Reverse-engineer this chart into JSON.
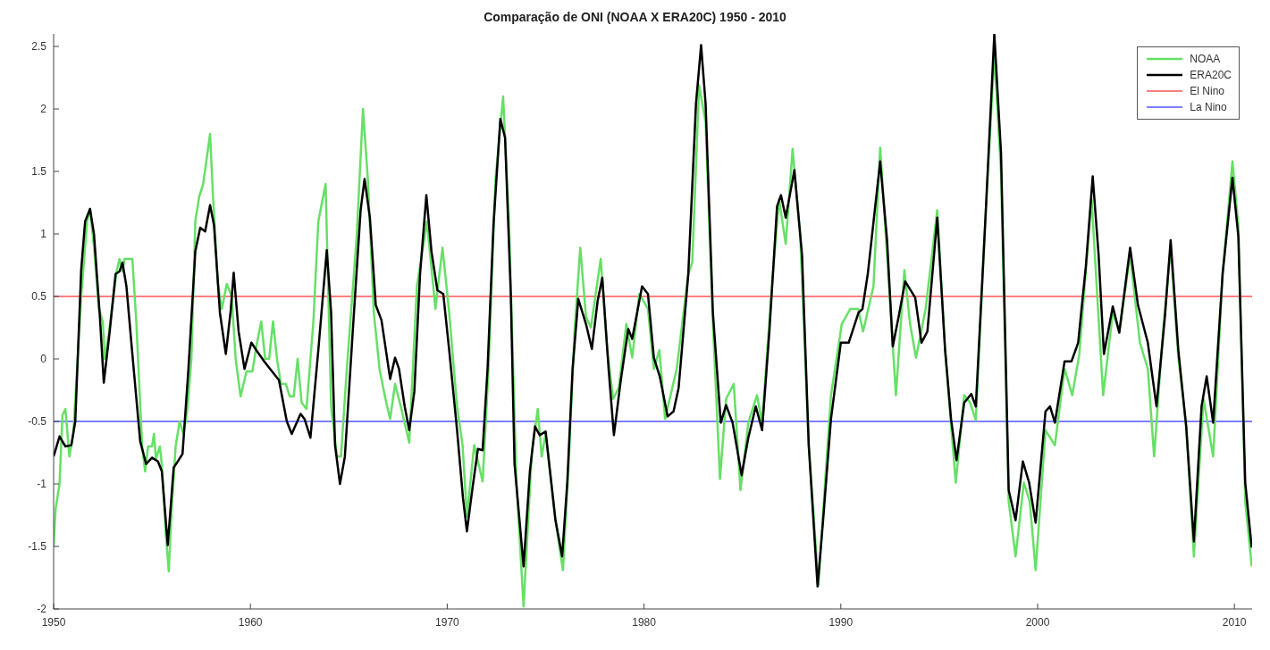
{
  "chart_data": {
    "type": "line",
    "title": "Comparação de ONI (NOAA X ERA20C) 1950 - 2010",
    "xlim": [
      1950,
      2010.9
    ],
    "xticks": [
      1950,
      1960,
      1970,
      1980,
      1990,
      2000,
      2010
    ],
    "ylim": [
      -2,
      2.6
    ],
    "yticks": [
      -2,
      -1.5,
      -1,
      -0.5,
      0,
      0.5,
      1,
      1.5,
      2,
      2.5
    ],
    "grid": false,
    "legend": "top right",
    "marker": "none",
    "line_style": "solid",
    "series": [
      {
        "name": "NOAA",
        "color": "#66e066",
        "x": [
          1950.0,
          1950.1,
          1950.3,
          1950.45,
          1950.6,
          1950.8,
          1951.0,
          1951.4,
          1951.7,
          1951.85,
          1952.05,
          1952.3,
          1952.5,
          1952.6,
          1952.8,
          1953.2,
          1953.35,
          1953.5,
          1953.6,
          1954.0,
          1954.2,
          1954.5,
          1954.65,
          1954.8,
          1955.0,
          1955.1,
          1955.2,
          1955.4,
          1955.5,
          1955.7,
          1955.85,
          1956.0,
          1956.2,
          1956.4,
          1956.6,
          1956.8,
          1957.0,
          1957.2,
          1957.4,
          1957.6,
          1957.95,
          1958.1,
          1958.35,
          1958.55,
          1958.8,
          1959.05,
          1959.25,
          1959.5,
          1959.8,
          1960.1,
          1960.3,
          1960.55,
          1960.75,
          1960.95,
          1961.15,
          1961.35,
          1961.55,
          1961.8,
          1962.0,
          1962.2,
          1962.4,
          1962.6,
          1962.85,
          1963.0,
          1963.2,
          1963.45,
          1963.82,
          1963.92,
          1964.1,
          1964.4,
          1964.6,
          1964.9,
          1965.4,
          1965.72,
          1965.97,
          1966.27,
          1966.56,
          1966.86,
          1967.1,
          1967.35,
          1967.64,
          1968.07,
          1968.46,
          1968.97,
          1969.4,
          1969.76,
          1970.1,
          1970.5,
          1970.78,
          1971.0,
          1971.37,
          1971.8,
          1972.1,
          1972.45,
          1972.84,
          1973.13,
          1973.52,
          1973.88,
          1974.3,
          1974.6,
          1974.8,
          1975.0,
          1975.5,
          1975.88,
          1976.17,
          1976.47,
          1976.76,
          1977.05,
          1977.3,
          1977.8,
          1978.13,
          1978.43,
          1978.72,
          1979.1,
          1979.4,
          1979.76,
          1980.2,
          1980.5,
          1980.78,
          1981.07,
          1981.66,
          1982.25,
          1982.45,
          1982.8,
          1983.13,
          1983.5,
          1983.86,
          1984.17,
          1984.56,
          1984.9,
          1985.3,
          1985.74,
          1986.0,
          1986.47,
          1986.86,
          1987.2,
          1987.55,
          1987.94,
          1988.37,
          1988.56,
          1988.86,
          1989.2,
          1989.5,
          1990.05,
          1990.48,
          1990.88,
          1991.13,
          1991.66,
          1992.0,
          1992.35,
          1992.8,
          1993.23,
          1993.52,
          1993.82,
          1994.31,
          1994.9,
          1995.3,
          1995.84,
          1996.27,
          1996.57,
          1996.86,
          1997.35,
          1997.8,
          1998.14,
          1998.53,
          1998.88,
          1999.3,
          1999.6,
          1999.9,
          2000.4,
          2000.88,
          2001.37,
          2001.76,
          2002.12,
          2002.74,
          2003.33,
          2003.82,
          2004.15,
          2004.7,
          2005.2,
          2005.6,
          2005.92,
          2006.37,
          2006.76,
          2007.15,
          2007.55,
          2007.94,
          2008.43,
          2008.92,
          2009.4,
          2009.9,
          2010.2,
          2010.55,
          2010.88
        ],
        "values": [
          -1.5,
          -1.2,
          -1.0,
          -0.45,
          -0.4,
          -0.78,
          -0.6,
          0.5,
          1.1,
          1.2,
          0.9,
          0.4,
          0.3,
          0.0,
          0.2,
          0.7,
          0.8,
          0.7,
          0.8,
          0.8,
          0.3,
          -0.7,
          -0.9,
          -0.7,
          -0.7,
          -0.6,
          -0.8,
          -0.7,
          -0.85,
          -1.4,
          -1.7,
          -1.2,
          -0.7,
          -0.5,
          -0.6,
          -0.4,
          0.0,
          1.1,
          1.3,
          1.4,
          1.8,
          1.3,
          0.6,
          0.4,
          0.6,
          0.5,
          0.0,
          -0.3,
          -0.1,
          -0.1,
          0.1,
          0.3,
          0.0,
          0.0,
          0.3,
          0.0,
          -0.2,
          -0.2,
          -0.3,
          -0.3,
          0.0,
          -0.35,
          -0.4,
          -0.1,
          0.3,
          1.1,
          1.4,
          0.77,
          -0.38,
          -0.78,
          -0.78,
          -0.08,
          0.98,
          2.0,
          1.43,
          0.37,
          -0.08,
          -0.32,
          -0.48,
          -0.2,
          -0.38,
          -0.67,
          0.58,
          1.1,
          0.4,
          0.89,
          0.37,
          -0.38,
          -0.69,
          -1.26,
          -0.69,
          -0.98,
          -0.08,
          1.43,
          2.1,
          1.13,
          -0.99,
          -1.98,
          -0.75,
          -0.4,
          -0.78,
          -0.6,
          -1.29,
          -1.69,
          -0.84,
          0.22,
          0.89,
          0.34,
          0.25,
          0.8,
          0.07,
          -0.32,
          -0.23,
          0.28,
          0.01,
          0.52,
          0.4,
          -0.08,
          0.07,
          -0.48,
          -0.08,
          0.68,
          0.77,
          2.19,
          1.89,
          0.28,
          -0.96,
          -0.32,
          -0.2,
          -1.05,
          -0.51,
          -0.29,
          -0.51,
          0.52,
          1.28,
          0.92,
          1.68,
          0.98,
          -0.69,
          -1.11,
          -1.81,
          -0.99,
          -0.29,
          0.28,
          0.4,
          0.4,
          0.22,
          0.58,
          1.69,
          0.83,
          -0.29,
          0.71,
          0.28,
          0.01,
          0.4,
          1.19,
          0.07,
          -0.99,
          -0.29,
          -0.35,
          -0.49,
          1.13,
          2.43,
          1.49,
          -1.14,
          -1.58,
          -0.99,
          -1.14,
          -1.69,
          -0.57,
          -0.69,
          -0.08,
          -0.29,
          0.04,
          1.28,
          -0.29,
          0.37,
          0.22,
          0.83,
          0.13,
          -0.08,
          -0.78,
          0.22,
          0.89,
          0.01,
          -0.54,
          -1.58,
          -0.32,
          -0.78,
          0.68,
          1.58,
          1.07,
          -1.14,
          -1.66
        ]
      },
      {
        "name": "ERA20C",
        "color": "#000000",
        "x": [
          1950.0,
          1950.3,
          1950.6,
          1950.9,
          1951.1,
          1951.4,
          1951.6,
          1951.85,
          1952.05,
          1952.35,
          1952.55,
          1952.85,
          1953.15,
          1953.35,
          1953.5,
          1953.7,
          1954.0,
          1954.4,
          1954.7,
          1955.0,
          1955.3,
          1955.5,
          1955.8,
          1956.1,
          1956.35,
          1956.55,
          1956.85,
          1957.2,
          1957.45,
          1957.7,
          1957.95,
          1958.15,
          1958.45,
          1958.75,
          1959.0,
          1959.15,
          1959.4,
          1959.7,
          1960.05,
          1960.3,
          1960.7,
          1961.1,
          1961.45,
          1961.85,
          1962.1,
          1962.55,
          1962.75,
          1963.05,
          1963.45,
          1963.88,
          1964.1,
          1964.3,
          1964.55,
          1964.8,
          1965.2,
          1965.6,
          1965.8,
          1966.07,
          1966.37,
          1966.66,
          1967.1,
          1967.35,
          1967.55,
          1967.84,
          1968.07,
          1968.33,
          1968.62,
          1968.94,
          1969.2,
          1969.5,
          1969.8,
          1970.1,
          1970.5,
          1970.8,
          1971.0,
          1971.27,
          1971.56,
          1971.8,
          1972.05,
          1972.35,
          1972.7,
          1972.94,
          1973.23,
          1973.42,
          1973.88,
          1974.2,
          1974.46,
          1974.7,
          1975.0,
          1975.5,
          1975.84,
          1976.1,
          1976.37,
          1976.66,
          1977.05,
          1977.35,
          1977.64,
          1977.88,
          1978.2,
          1978.47,
          1978.82,
          1979.2,
          1979.4,
          1979.9,
          1980.2,
          1980.5,
          1980.8,
          1981.2,
          1981.5,
          1981.76,
          1982.25,
          1982.64,
          1982.9,
          1983.13,
          1983.5,
          1983.9,
          1984.17,
          1984.5,
          1984.96,
          1985.3,
          1985.68,
          1986.0,
          1986.37,
          1986.76,
          1986.96,
          1987.2,
          1987.64,
          1988.03,
          1988.37,
          1988.82,
          1989.1,
          1989.5,
          1990.0,
          1990.4,
          1990.9,
          1991.1,
          1991.37,
          1992.0,
          1992.35,
          1992.64,
          1992.94,
          1993.27,
          1993.78,
          1994.1,
          1994.4,
          1994.9,
          1995.3,
          1995.6,
          1995.88,
          1996.27,
          1996.63,
          1996.86,
          1997.35,
          1997.8,
          1998.14,
          1998.53,
          1998.88,
          1999.25,
          1999.57,
          1999.9,
          2000.4,
          2000.63,
          2000.88,
          2001.37,
          2001.72,
          2002.06,
          2002.45,
          2002.8,
          2003.1,
          2003.37,
          2003.82,
          2004.15,
          2004.7,
          2005.1,
          2005.6,
          2006.04,
          2006.47,
          2006.76,
          2007.15,
          2007.55,
          2007.94,
          2008.33,
          2008.59,
          2008.92,
          2009.4,
          2009.9,
          2010.2,
          2010.55,
          2010.88
        ],
        "values": [
          -0.78,
          -0.62,
          -0.7,
          -0.69,
          -0.5,
          0.71,
          1.1,
          1.2,
          1.0,
          0.34,
          -0.19,
          0.22,
          0.68,
          0.7,
          0.77,
          0.58,
          0.04,
          -0.66,
          -0.84,
          -0.79,
          -0.82,
          -0.9,
          -1.49,
          -0.87,
          -0.81,
          -0.76,
          -0.08,
          0.86,
          1.05,
          1.02,
          1.23,
          1.07,
          0.37,
          0.04,
          0.39,
          0.69,
          0.22,
          -0.08,
          0.13,
          0.07,
          -0.02,
          -0.1,
          -0.17,
          -0.5,
          -0.6,
          -0.44,
          -0.48,
          -0.63,
          0.07,
          0.87,
          0.37,
          -0.69,
          -1.0,
          -0.78,
          0.22,
          1.19,
          1.44,
          1.13,
          0.43,
          0.31,
          -0.16,
          0.01,
          -0.08,
          -0.38,
          -0.57,
          -0.26,
          0.68,
          1.31,
          0.86,
          0.55,
          0.52,
          0.07,
          -0.57,
          -1.11,
          -1.38,
          -1.05,
          -0.72,
          -0.73,
          -0.08,
          1.07,
          1.92,
          1.77,
          0.52,
          -0.84,
          -1.66,
          -0.9,
          -0.54,
          -0.61,
          -0.58,
          -1.29,
          -1.58,
          -0.99,
          -0.08,
          0.48,
          0.28,
          0.08,
          0.46,
          0.65,
          -0.08,
          -0.61,
          -0.17,
          0.24,
          0.16,
          0.58,
          0.52,
          0.01,
          -0.14,
          -0.46,
          -0.42,
          -0.23,
          0.68,
          2.04,
          2.51,
          2.04,
          0.37,
          -0.51,
          -0.37,
          -0.51,
          -0.93,
          -0.63,
          -0.38,
          -0.57,
          0.22,
          1.22,
          1.31,
          1.13,
          1.51,
          0.83,
          -0.69,
          -1.82,
          -1.29,
          -0.48,
          0.13,
          0.13,
          0.37,
          0.4,
          0.68,
          1.58,
          0.95,
          0.1,
          0.34,
          0.62,
          0.49,
          0.13,
          0.22,
          1.13,
          0.07,
          -0.48,
          -0.81,
          -0.35,
          -0.28,
          -0.38,
          1.13,
          2.6,
          1.65,
          -1.05,
          -1.29,
          -0.82,
          -0.99,
          -1.31,
          -0.42,
          -0.38,
          -0.51,
          -0.02,
          -0.02,
          0.13,
          0.74,
          1.46,
          0.83,
          0.04,
          0.42,
          0.21,
          0.89,
          0.43,
          0.13,
          -0.38,
          0.34,
          0.95,
          0.07,
          -0.54,
          -1.46,
          -0.38,
          -0.14,
          -0.51,
          0.68,
          1.45,
          0.98,
          -0.99,
          -1.51
        ]
      }
    ],
    "ref_lines": [
      {
        "axis": "y",
        "value": 0.5,
        "label": "El Nino",
        "color": "#ff0000"
      },
      {
        "axis": "y",
        "value": -0.5,
        "label": "La Nino",
        "color": "#0000ff"
      }
    ]
  }
}
